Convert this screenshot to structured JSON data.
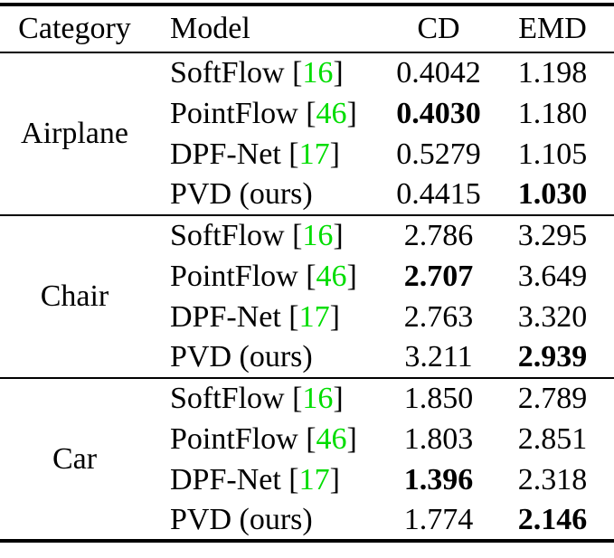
{
  "table": {
    "headers": {
      "category": "Category",
      "model": "Model",
      "cd": "CD",
      "emd": "EMD"
    },
    "cite_open": "[",
    "cite_close": "]",
    "colors": {
      "citation": "#00dd00",
      "text": "#000000",
      "background": "#ffffff"
    },
    "groups": [
      {
        "category": "Airplane",
        "rows": [
          {
            "model": "SoftFlow",
            "cite": "16",
            "cd": "0.4042",
            "emd": "1.198",
            "cd_bold": false,
            "emd_bold": false
          },
          {
            "model": "PointFlow",
            "cite": "46",
            "cd": "0.4030",
            "emd": "1.180",
            "cd_bold": true,
            "emd_bold": false
          },
          {
            "model": "DPF-Net",
            "cite": "17",
            "cd": "0.5279",
            "emd": "1.105",
            "cd_bold": false,
            "emd_bold": false
          },
          {
            "model": "PVD (ours)",
            "cd": "0.4415",
            "emd": "1.030",
            "cd_bold": false,
            "emd_bold": true
          }
        ]
      },
      {
        "category": "Chair",
        "rows": [
          {
            "model": "SoftFlow",
            "cite": "16",
            "cd": "2.786",
            "emd": "3.295",
            "cd_bold": false,
            "emd_bold": false
          },
          {
            "model": "PointFlow",
            "cite": "46",
            "cd": "2.707",
            "emd": "3.649",
            "cd_bold": true,
            "emd_bold": false
          },
          {
            "model": "DPF-Net",
            "cite": "17",
            "cd": "2.763",
            "emd": "3.320",
            "cd_bold": false,
            "emd_bold": false
          },
          {
            "model": "PVD (ours)",
            "cd": "3.211",
            "emd": "2.939",
            "cd_bold": false,
            "emd_bold": true
          }
        ]
      },
      {
        "category": "Car",
        "rows": [
          {
            "model": "SoftFlow",
            "cite": "16",
            "cd": "1.850",
            "emd": "2.789",
            "cd_bold": false,
            "emd_bold": false
          },
          {
            "model": "PointFlow",
            "cite": "46",
            "cd": "1.803",
            "emd": "2.851",
            "cd_bold": false,
            "emd_bold": false
          },
          {
            "model": "DPF-Net",
            "cite": "17",
            "cd": "1.396",
            "emd": "2.318",
            "cd_bold": true,
            "emd_bold": false
          },
          {
            "model": "PVD (ours)",
            "cd": "1.774",
            "emd": "2.146",
            "cd_bold": false,
            "emd_bold": true
          }
        ]
      }
    ]
  }
}
